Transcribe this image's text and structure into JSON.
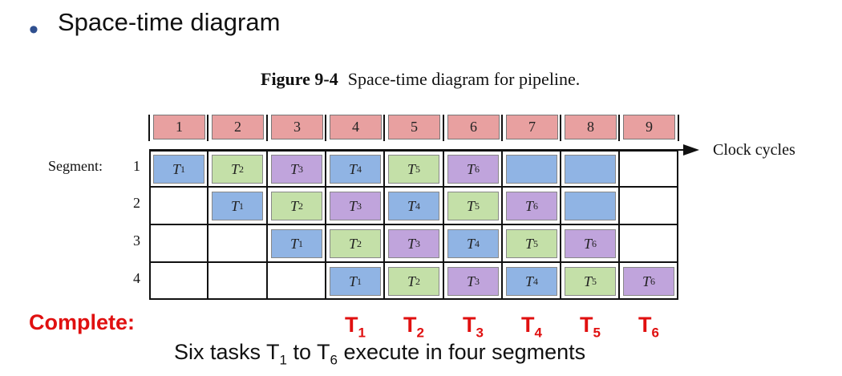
{
  "heading": {
    "bullet": "•",
    "text": "Space-time diagram"
  },
  "figure": {
    "number": "Figure 9-4",
    "caption": "Space-time diagram for pipeline."
  },
  "clock_cycles": [
    "1",
    "2",
    "3",
    "4",
    "5",
    "6",
    "7",
    "8",
    "9"
  ],
  "axis_label": "Clock cycles",
  "segment_prefix": "Segment:",
  "segments": [
    {
      "label": "1",
      "tasks": [
        "1",
        "2",
        "3",
        "4",
        "5",
        "6",
        "",
        "",
        ""
      ]
    },
    {
      "label": "2",
      "tasks": [
        "",
        "1",
        "2",
        "3",
        "4",
        "5",
        "6",
        "",
        ""
      ]
    },
    {
      "label": "3",
      "tasks": [
        "",
        "",
        "1",
        "2",
        "3",
        "4",
        "5",
        "6",
        ""
      ]
    },
    {
      "label": "4",
      "tasks": [
        "",
        "",
        "",
        "1",
        "2",
        "3",
        "4",
        "5",
        "6"
      ]
    }
  ],
  "blank_filled": [
    [
      0,
      6
    ],
    [
      0,
      7
    ],
    [
      1,
      7
    ]
  ],
  "colors": {
    "header": "#e8a0a0",
    "task": {
      "1": "#90b4e4",
      "2": "#c4e0a8",
      "3": "#c0a4dc",
      "4": "#90b4e4",
      "5": "#c4e0a8",
      "6": "#c0a4dc"
    },
    "blank": "#90b4e4",
    "highlight": "#e01010"
  },
  "task_letter": "T",
  "complete": {
    "label": "Complete:",
    "tasks": [
      {
        "t": "T",
        "n": "1"
      },
      {
        "t": "T",
        "n": "2"
      },
      {
        "t": "T",
        "n": "3"
      },
      {
        "t": "T",
        "n": "4"
      },
      {
        "t": "T",
        "n": "5"
      },
      {
        "t": "T",
        "n": "6"
      }
    ]
  },
  "footer": {
    "a": "Six tasks T",
    "s1": "1",
    "b": " to T",
    "s2": "6",
    "c": " execute in four segments"
  }
}
